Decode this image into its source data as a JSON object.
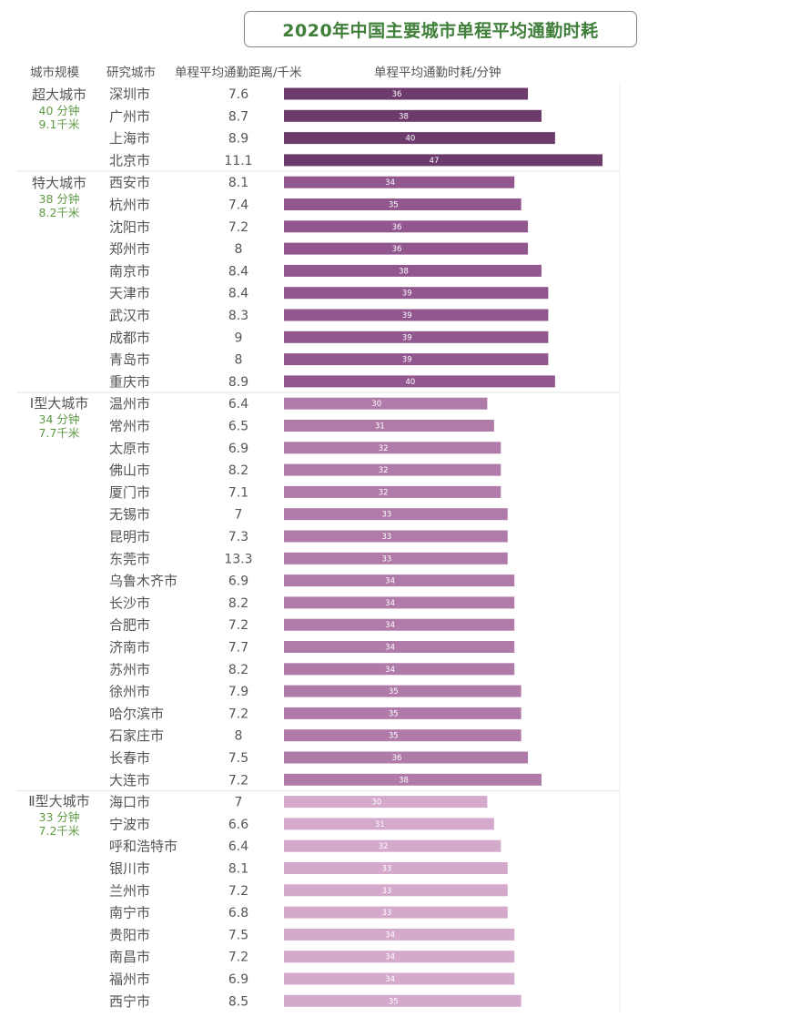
{
  "title": "2020年中国主要城市单程平均通勤时耗",
  "headers": {
    "scale": "城市规模",
    "city": "研究城市",
    "distance": "单程平均通勤距离/千米",
    "time": "单程平均通勤时耗/分钟"
  },
  "groups": [
    {
      "name": "超大城市",
      "avg_time": "40 分钟",
      "avg_dist": "9.1千米"
    },
    {
      "name": "特大城市",
      "avg_time": "38 分钟",
      "avg_dist": "8.2千米"
    },
    {
      "name": "Ⅰ型大城市",
      "avg_time": "34 分钟",
      "avg_dist": "7.7千米"
    },
    {
      "name": "Ⅱ型大城市",
      "avg_time": "33 分钟",
      "avg_dist": "7.2千米"
    }
  ],
  "chart_data": {
    "type": "bar",
    "orientation": "horizontal",
    "title": "2020年中国主要城市单程平均通勤时耗",
    "value_label": "单程平均通勤时耗/分钟",
    "grid": false,
    "colors": {
      "超大城市": "#6d3a6c",
      "特大城市": "#92578f",
      "Ⅰ型大城市": "#b07ba9",
      "Ⅱ型大城市": "#d4a9cb"
    },
    "rows": [
      {
        "group": "超大城市",
        "city": "深圳市",
        "distance": "7.6",
        "time": 36
      },
      {
        "group": "超大城市",
        "city": "广州市",
        "distance": "8.7",
        "time": 38
      },
      {
        "group": "超大城市",
        "city": "上海市",
        "distance": "8.9",
        "time": 40
      },
      {
        "group": "超大城市",
        "city": "北京市",
        "distance": "11.1",
        "time": 47
      },
      {
        "group": "特大城市",
        "city": "西安市",
        "distance": "8.1",
        "time": 34
      },
      {
        "group": "特大城市",
        "city": "杭州市",
        "distance": "7.4",
        "time": 35
      },
      {
        "group": "特大城市",
        "city": "沈阳市",
        "distance": "7.2",
        "time": 36
      },
      {
        "group": "特大城市",
        "city": "郑州市",
        "distance": "8",
        "time": 36
      },
      {
        "group": "特大城市",
        "city": "南京市",
        "distance": "8.4",
        "time": 38
      },
      {
        "group": "特大城市",
        "city": "天津市",
        "distance": "8.4",
        "time": 39
      },
      {
        "group": "特大城市",
        "city": "武汉市",
        "distance": "8.3",
        "time": 39
      },
      {
        "group": "特大城市",
        "city": "成都市",
        "distance": "9",
        "time": 39
      },
      {
        "group": "特大城市",
        "city": "青岛市",
        "distance": "8",
        "time": 39
      },
      {
        "group": "特大城市",
        "city": "重庆市",
        "distance": "8.9",
        "time": 40
      },
      {
        "group": "Ⅰ型大城市",
        "city": "温州市",
        "distance": "6.4",
        "time": 30
      },
      {
        "group": "Ⅰ型大城市",
        "city": "常州市",
        "distance": "6.5",
        "time": 31
      },
      {
        "group": "Ⅰ型大城市",
        "city": "太原市",
        "distance": "6.9",
        "time": 32
      },
      {
        "group": "Ⅰ型大城市",
        "city": "佛山市",
        "distance": "8.2",
        "time": 32
      },
      {
        "group": "Ⅰ型大城市",
        "city": "厦门市",
        "distance": "7.1",
        "time": 32
      },
      {
        "group": "Ⅰ型大城市",
        "city": "无锡市",
        "distance": "7",
        "time": 33
      },
      {
        "group": "Ⅰ型大城市",
        "city": "昆明市",
        "distance": "7.3",
        "time": 33
      },
      {
        "group": "Ⅰ型大城市",
        "city": "东莞市",
        "distance": "13.3",
        "time": 33
      },
      {
        "group": "Ⅰ型大城市",
        "city": "乌鲁木齐市",
        "distance": "6.9",
        "time": 34
      },
      {
        "group": "Ⅰ型大城市",
        "city": "长沙市",
        "distance": "8.2",
        "time": 34
      },
      {
        "group": "Ⅰ型大城市",
        "city": "合肥市",
        "distance": "7.2",
        "time": 34
      },
      {
        "group": "Ⅰ型大城市",
        "city": "济南市",
        "distance": "7.7",
        "time": 34
      },
      {
        "group": "Ⅰ型大城市",
        "city": "苏州市",
        "distance": "8.2",
        "time": 34
      },
      {
        "group": "Ⅰ型大城市",
        "city": "徐州市",
        "distance": "7.9",
        "time": 35
      },
      {
        "group": "Ⅰ型大城市",
        "city": "哈尔滨市",
        "distance": "7.2",
        "time": 35
      },
      {
        "group": "Ⅰ型大城市",
        "city": "石家庄市",
        "distance": "8",
        "time": 35
      },
      {
        "group": "Ⅰ型大城市",
        "city": "长春市",
        "distance": "7.5",
        "time": 36
      },
      {
        "group": "Ⅰ型大城市",
        "city": "大连市",
        "distance": "7.2",
        "time": 38
      },
      {
        "group": "Ⅱ型大城市",
        "city": "海口市",
        "distance": "7",
        "time": 30
      },
      {
        "group": "Ⅱ型大城市",
        "city": "宁波市",
        "distance": "6.6",
        "time": 31
      },
      {
        "group": "Ⅱ型大城市",
        "city": "呼和浩特市",
        "distance": "6.4",
        "time": 32
      },
      {
        "group": "Ⅱ型大城市",
        "city": "银川市",
        "distance": "8.1",
        "time": 33
      },
      {
        "group": "Ⅱ型大城市",
        "city": "兰州市",
        "distance": "7.2",
        "time": 33
      },
      {
        "group": "Ⅱ型大城市",
        "city": "南宁市",
        "distance": "6.8",
        "time": 33
      },
      {
        "group": "Ⅱ型大城市",
        "city": "贵阳市",
        "distance": "7.5",
        "time": 34
      },
      {
        "group": "Ⅱ型大城市",
        "city": "南昌市",
        "distance": "7.2",
        "time": 34
      },
      {
        "group": "Ⅱ型大城市",
        "city": "福州市",
        "distance": "6.9",
        "time": 34
      },
      {
        "group": "Ⅱ型大城市",
        "city": "西宁市",
        "distance": "8.5",
        "time": 35
      }
    ]
  }
}
